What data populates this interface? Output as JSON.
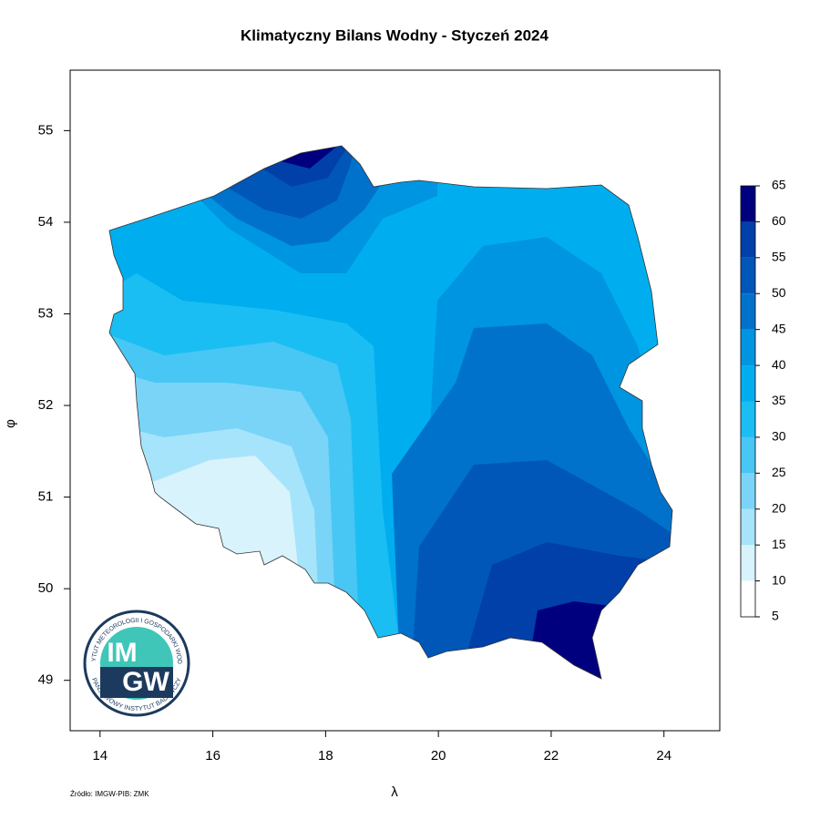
{
  "map": {
    "title": "Klimatyczny Bilans Wodny - Styczeń 2024",
    "xlabel": "λ",
    "ylabel": "φ",
    "xlim": [
      13.47,
      24.99
    ],
    "ylim": [
      48.45,
      55.66
    ],
    "xticks": [
      14,
      16,
      18,
      20,
      22,
      24
    ],
    "yticks": [
      49,
      50,
      51,
      52,
      53,
      54,
      55
    ],
    "legend": {
      "levels": [
        5,
        10,
        15,
        20,
        25,
        30,
        35,
        40,
        45,
        50,
        55,
        60,
        65
      ],
      "colors": [
        "#ffffff",
        "#d8f3fc",
        "#a6e4fb",
        "#7ad4f7",
        "#48c7f4",
        "#1bbef2",
        "#00aeef",
        "#0095e0",
        "#0072cc",
        "#0057b8",
        "#0040a8",
        "#00007f"
      ]
    },
    "source": "Źródło: IMGW-PIB: ZMK",
    "logo": {
      "ring_top": "INSTYTUT METEOROLOGII I GOSPODARKI WODNEJ",
      "ring_bottom": "PAŃSTWOWY INSTYTUT BADAWCZY",
      "line1": "IM",
      "line2": "GW"
    }
  }
}
